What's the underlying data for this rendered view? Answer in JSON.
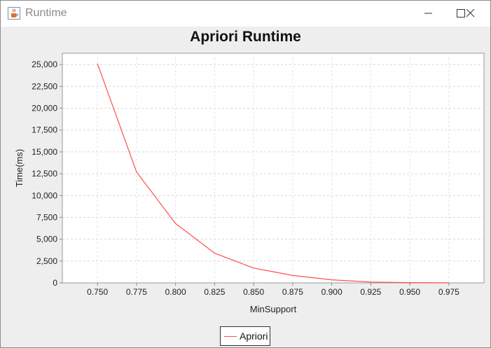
{
  "window": {
    "title": "Runtime",
    "app_icon": "java-cup-icon",
    "controls": [
      "minimize-icon",
      "maximize-icon",
      "close-icon"
    ]
  },
  "chart_data": {
    "type": "line",
    "title": "Apriori Runtime",
    "xlabel": "MinSupport",
    "ylabel": "Time(ms)",
    "x": [
      0.75,
      0.775,
      0.8,
      0.825,
      0.85,
      0.875,
      0.9,
      0.925,
      0.95,
      0.975
    ],
    "series": [
      {
        "name": "Apriori",
        "color": "#ff4d4d",
        "values": [
          25100,
          12700,
          6800,
          3400,
          1700,
          850,
          350,
          100,
          30,
          10
        ]
      }
    ],
    "xlim": [
      0.7275,
      0.9975
    ],
    "ylim": [
      0,
      26300
    ],
    "xticks": [
      "0.750",
      "0.775",
      "0.800",
      "0.825",
      "0.850",
      "0.875",
      "0.900",
      "0.925",
      "0.950",
      "0.975"
    ],
    "yticks": [
      "0",
      "2,500",
      "5,000",
      "7,500",
      "10,000",
      "12,500",
      "15,000",
      "17,500",
      "20,000",
      "22,500",
      "25,000"
    ],
    "grid": true,
    "legend_position": "bottom"
  }
}
